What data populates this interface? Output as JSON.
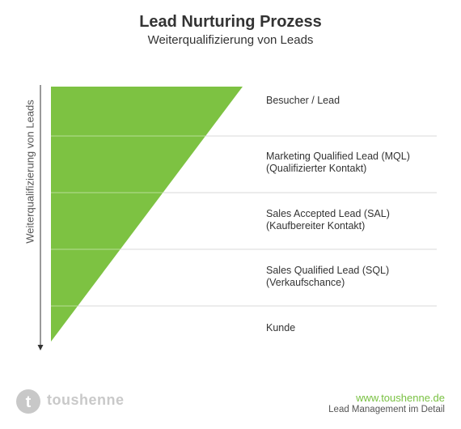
{
  "header": {
    "title": "Lead Nurturing Prozess",
    "subtitle": "Weiterqualifizierung von Leads"
  },
  "axis": {
    "label": "Weiterqualifizierung von Leads"
  },
  "stages": [
    {
      "line1": "Besucher / Lead",
      "line2": ""
    },
    {
      "line1": "Marketing Qualified Lead (MQL)",
      "line2": "(Qualifizierter Kontakt)"
    },
    {
      "line1": "Sales Accepted Lead (SAL)",
      "line2": "(Kaufbereiter Kontakt)"
    },
    {
      "line1": "Sales Qualified Lead (SQL)",
      "line2": "(Verkaufschance)"
    },
    {
      "line1": "Kunde",
      "line2": ""
    }
  ],
  "footer": {
    "brand_name": "toushenne",
    "logo_letter": "t",
    "url": "www.toushenne.de",
    "tagline": "Lead Management im Detail"
  },
  "colors": {
    "funnel_green": "#7dc242",
    "accent_green": "#79c142",
    "logo_circle": "#c8c8c8",
    "divider": "#d9d9d9"
  }
}
